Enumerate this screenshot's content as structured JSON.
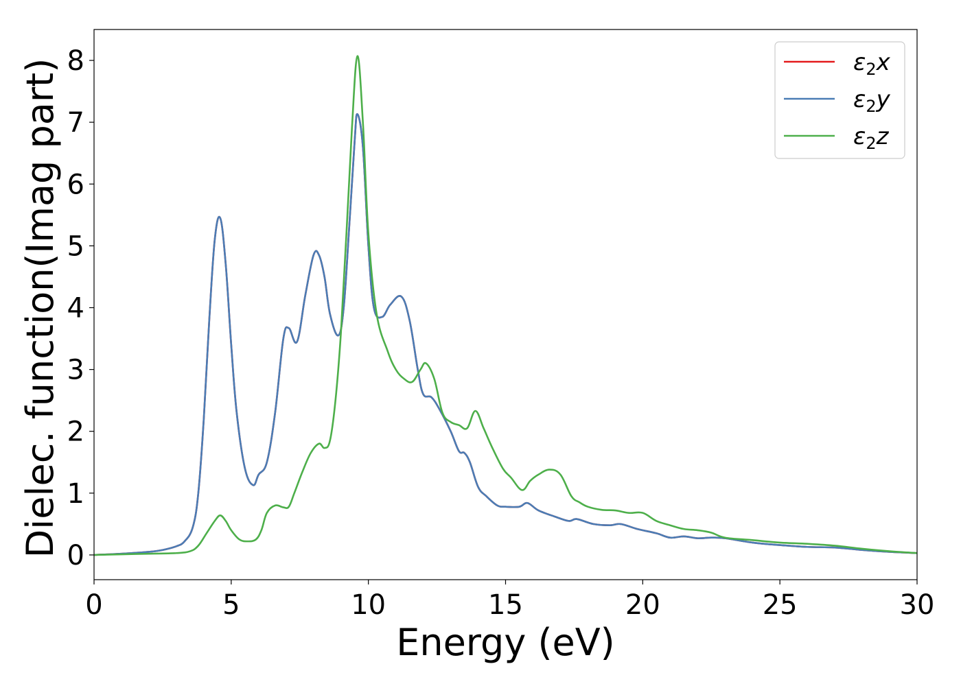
{
  "chart_data": {
    "type": "line",
    "xlabel": "Energy (eV)",
    "ylabel": "Dielec. function(Imag part)",
    "xlim": [
      0,
      30
    ],
    "ylim": [
      -0.4,
      8.5
    ],
    "xticks": [
      0,
      5,
      10,
      15,
      20,
      25,
      30
    ],
    "yticks": [
      0,
      1,
      2,
      3,
      4,
      5,
      6,
      7,
      8
    ],
    "grid": false,
    "legend_position": "top-right",
    "series": [
      {
        "name": "ε2x",
        "legend": {
          "symbol": "ε",
          "sub": "2",
          "axis": "x"
        },
        "color": "#e41a1c",
        "x": [
          0,
          1,
          2,
          2.5,
          3,
          3.3,
          3.6,
          3.8,
          4.0,
          4.2,
          4.4,
          4.6,
          4.8,
          5.0,
          5.2,
          5.5,
          5.8,
          6.0,
          6.3,
          6.6,
          6.9,
          7.1,
          7.4,
          7.7,
          8.0,
          8.2,
          8.4,
          8.6,
          8.9,
          9.1,
          9.3,
          9.5,
          9.6,
          9.8,
          10.0,
          10.2,
          10.5,
          10.8,
          11.2,
          11.5,
          11.8,
          12.0,
          12.3,
          12.6,
          13.0,
          13.3,
          13.5,
          13.7,
          14.0,
          14.3,
          14.7,
          15.0,
          15.5,
          15.8,
          16.2,
          16.8,
          17.3,
          17.6,
          18.2,
          18.8,
          19.2,
          19.8,
          20.5,
          21.0,
          21.5,
          22.0,
          22.5,
          23.0,
          24.0,
          25.0,
          26.0,
          27.0,
          28.0,
          29.0,
          30.0
        ],
        "values": [
          0.0,
          0.02,
          0.05,
          0.08,
          0.14,
          0.22,
          0.45,
          1.0,
          2.2,
          3.8,
          5.1,
          5.45,
          4.7,
          3.4,
          2.3,
          1.4,
          1.13,
          1.3,
          1.5,
          2.3,
          3.5,
          3.67,
          3.45,
          4.2,
          4.85,
          4.85,
          4.5,
          3.9,
          3.55,
          4.0,
          5.3,
          6.7,
          7.13,
          6.6,
          5.0,
          4.0,
          3.85,
          4.05,
          4.18,
          3.8,
          3.0,
          2.6,
          2.55,
          2.35,
          2.0,
          1.68,
          1.65,
          1.5,
          1.1,
          0.95,
          0.8,
          0.78,
          0.78,
          0.84,
          0.72,
          0.62,
          0.55,
          0.58,
          0.5,
          0.48,
          0.5,
          0.42,
          0.35,
          0.28,
          0.3,
          0.27,
          0.28,
          0.27,
          0.2,
          0.16,
          0.13,
          0.12,
          0.08,
          0.05,
          0.03
        ]
      },
      {
        "name": "ε2y",
        "legend": {
          "symbol": "ε",
          "sub": "2",
          "axis": "y"
        },
        "color": "#4a7db5",
        "x": [
          0,
          1,
          2,
          2.5,
          3,
          3.3,
          3.6,
          3.8,
          4.0,
          4.2,
          4.4,
          4.6,
          4.8,
          5.0,
          5.2,
          5.5,
          5.8,
          6.0,
          6.3,
          6.6,
          6.9,
          7.1,
          7.4,
          7.7,
          8.0,
          8.2,
          8.4,
          8.6,
          8.9,
          9.1,
          9.3,
          9.5,
          9.6,
          9.8,
          10.0,
          10.2,
          10.5,
          10.8,
          11.2,
          11.5,
          11.8,
          12.0,
          12.3,
          12.6,
          13.0,
          13.3,
          13.5,
          13.7,
          14.0,
          14.3,
          14.7,
          15.0,
          15.5,
          15.8,
          16.2,
          16.8,
          17.3,
          17.6,
          18.2,
          18.8,
          19.2,
          19.8,
          20.5,
          21.0,
          21.5,
          22.0,
          22.5,
          23.0,
          24.0,
          25.0,
          26.0,
          27.0,
          28.0,
          29.0,
          30.0
        ],
        "values": [
          0.0,
          0.02,
          0.05,
          0.08,
          0.14,
          0.22,
          0.45,
          1.0,
          2.2,
          3.8,
          5.1,
          5.45,
          4.7,
          3.4,
          2.3,
          1.4,
          1.13,
          1.3,
          1.5,
          2.3,
          3.5,
          3.67,
          3.45,
          4.2,
          4.85,
          4.85,
          4.5,
          3.9,
          3.55,
          4.0,
          5.3,
          6.7,
          7.13,
          6.6,
          5.0,
          4.0,
          3.85,
          4.05,
          4.18,
          3.8,
          3.0,
          2.6,
          2.55,
          2.35,
          2.0,
          1.68,
          1.65,
          1.5,
          1.1,
          0.95,
          0.8,
          0.78,
          0.78,
          0.84,
          0.72,
          0.62,
          0.55,
          0.58,
          0.5,
          0.48,
          0.5,
          0.42,
          0.35,
          0.28,
          0.3,
          0.27,
          0.28,
          0.27,
          0.2,
          0.16,
          0.13,
          0.12,
          0.08,
          0.05,
          0.03
        ]
      },
      {
        "name": "ε2z",
        "legend": {
          "symbol": "ε",
          "sub": "2",
          "axis": "z"
        },
        "color": "#4daf4a",
        "x": [
          0,
          1,
          2,
          3,
          3.5,
          3.8,
          4.1,
          4.4,
          4.6,
          4.8,
          5.0,
          5.3,
          5.6,
          5.9,
          6.1,
          6.3,
          6.6,
          6.9,
          7.1,
          7.3,
          7.6,
          7.9,
          8.2,
          8.4,
          8.6,
          8.8,
          9.0,
          9.2,
          9.4,
          9.6,
          9.8,
          10.0,
          10.3,
          10.7,
          11.0,
          11.3,
          11.6,
          11.9,
          12.1,
          12.4,
          12.7,
          13.0,
          13.3,
          13.6,
          13.9,
          14.2,
          14.5,
          14.9,
          15.2,
          15.6,
          15.9,
          16.2,
          16.6,
          17.0,
          17.4,
          17.7,
          18.0,
          18.5,
          19.0,
          19.5,
          20.0,
          20.5,
          21.0,
          21.5,
          22.0,
          22.5,
          23.0,
          24.0,
          25.0,
          26.0,
          27.0,
          28.0,
          29.0,
          30.0
        ],
        "values": [
          0.0,
          0.01,
          0.02,
          0.03,
          0.06,
          0.15,
          0.35,
          0.55,
          0.64,
          0.55,
          0.4,
          0.25,
          0.22,
          0.25,
          0.4,
          0.68,
          0.8,
          0.77,
          0.78,
          1.0,
          1.35,
          1.65,
          1.8,
          1.73,
          1.85,
          2.5,
          3.6,
          5.2,
          6.9,
          8.07,
          7.0,
          5.2,
          3.9,
          3.3,
          3.0,
          2.85,
          2.8,
          3.0,
          3.1,
          2.85,
          2.3,
          2.15,
          2.1,
          2.05,
          2.33,
          2.05,
          1.75,
          1.4,
          1.25,
          1.05,
          1.2,
          1.3,
          1.38,
          1.3,
          0.95,
          0.85,
          0.78,
          0.73,
          0.72,
          0.68,
          0.68,
          0.55,
          0.48,
          0.42,
          0.4,
          0.36,
          0.28,
          0.24,
          0.2,
          0.18,
          0.15,
          0.1,
          0.06,
          0.03
        ]
      }
    ]
  }
}
